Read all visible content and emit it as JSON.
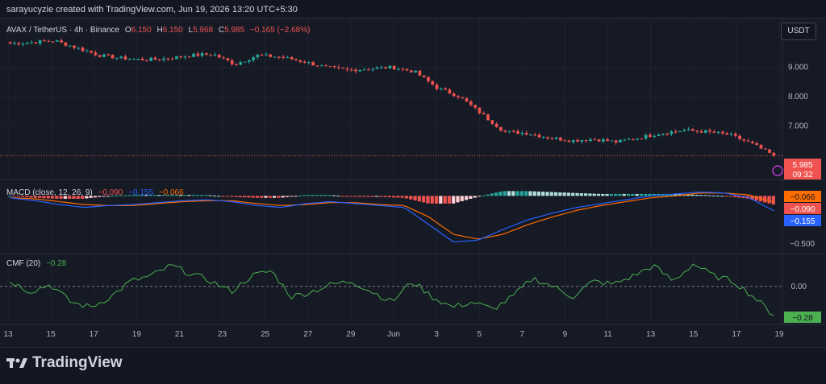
{
  "header": {
    "caption": "sarayucyzie created with TradingView.com, Jun 19, 2026 13:20 UTC+5:30"
  },
  "toolbar": {
    "currency_button": "USDT"
  },
  "footer": {
    "brand": "TradingView"
  },
  "legend": {
    "symbol": "AVAX / TetherUS · 4h · Binance",
    "o_label": "O",
    "o_value": "6.150",
    "h_label": "H",
    "h_value": "6.150",
    "l_label": "L",
    "l_value": "5.968",
    "c_label": "C",
    "c_value": "5.985",
    "change": "−0.165 (−2.68%)"
  },
  "price_badge": {
    "value": "5.985",
    "countdown": "09:32"
  },
  "macd": {
    "title": "MACD (close, 12, 26, 9)",
    "hist_value": "−0.090",
    "macd_value": "−0.155",
    "signal_value": "−0.066",
    "badges": [
      "−0.066",
      "−0.090",
      "−0.155"
    ]
  },
  "cmf": {
    "title": "CMF (20)",
    "value": "−0.28",
    "badge": "−0.28"
  },
  "colors": {
    "up": "#26a69a",
    "down": "#ef5350",
    "macd_line": "#2962ff",
    "signal_line": "#ff6d00",
    "cmf_line": "#4caf50",
    "background": "#161a25"
  },
  "chart_data": [
    {
      "type": "candlestick",
      "title": "AVAX / TetherUS · 4h · Binance",
      "ylim": [
        5.5,
        10.0
      ],
      "yticks": [
        "9.000",
        "8.000",
        "7.000"
      ],
      "xticks": [
        "13",
        "15",
        "17",
        "19",
        "21",
        "23",
        "25",
        "27",
        "29",
        "Jun",
        "3",
        "5",
        "7",
        "9",
        "11",
        "13",
        "15",
        "17",
        "19"
      ],
      "close_anchors": [
        9.8,
        9.85,
        9.9,
        9.65,
        9.4,
        9.3,
        9.25,
        9.3,
        9.4,
        9.45,
        9.1,
        9.4,
        9.35,
        9.2,
        9.0,
        8.9,
        8.95,
        9.0,
        8.85,
        8.3,
        8.0,
        7.4,
        6.8,
        6.75,
        6.6,
        6.5,
        6.55,
        6.45,
        6.6,
        6.75,
        6.85,
        6.8,
        6.7,
        6.4,
        5.985
      ],
      "last": 5.985
    },
    {
      "type": "line",
      "title": "MACD (close, 12, 26, 9)",
      "ylim": [
        -0.6,
        0.12
      ],
      "yticks": [
        "−0.500"
      ],
      "series": [
        {
          "name": "MACD",
          "values": [
            -0.02,
            -0.05,
            -0.09,
            -0.12,
            -0.1,
            -0.09,
            -0.07,
            -0.05,
            -0.04,
            -0.06,
            -0.1,
            -0.12,
            -0.08,
            -0.06,
            -0.08,
            -0.1,
            -0.12,
            -0.3,
            -0.48,
            -0.46,
            -0.35,
            -0.25,
            -0.18,
            -0.12,
            -0.08,
            -0.04,
            0.0,
            0.02,
            0.04,
            0.03,
            -0.02,
            -0.155
          ]
        },
        {
          "name": "Signal",
          "values": [
            -0.02,
            -0.03,
            -0.06,
            -0.09,
            -0.1,
            -0.1,
            -0.08,
            -0.06,
            -0.05,
            -0.05,
            -0.08,
            -0.1,
            -0.09,
            -0.07,
            -0.07,
            -0.09,
            -0.1,
            -0.22,
            -0.4,
            -0.45,
            -0.4,
            -0.3,
            -0.22,
            -0.15,
            -0.1,
            -0.06,
            -0.02,
            0.0,
            0.03,
            0.03,
            0.01,
            -0.066
          ]
        }
      ],
      "histogram_last": -0.09
    },
    {
      "type": "line",
      "title": "CMF (20)",
      "ylim": [
        -0.35,
        0.3
      ],
      "yticks": [
        "0.00"
      ],
      "series": [
        {
          "name": "CMF",
          "values": [
            0.05,
            -0.05,
            0.02,
            -0.15,
            -0.2,
            -0.1,
            0.05,
            0.1,
            0.2,
            0.12,
            0.05,
            -0.05,
            0.1,
            0.15,
            -0.1,
            -0.05,
            0.02,
            0.05,
            -0.05,
            -0.15,
            0.05,
            -0.1,
            -0.2,
            -0.15,
            -0.22,
            -0.1,
            0.08,
            0.0,
            -0.1,
            0.05,
            0.02,
            0.1,
            0.2,
            0.05,
            0.22,
            0.1,
            0.05,
            -0.1,
            -0.28
          ]
        }
      ]
    }
  ]
}
